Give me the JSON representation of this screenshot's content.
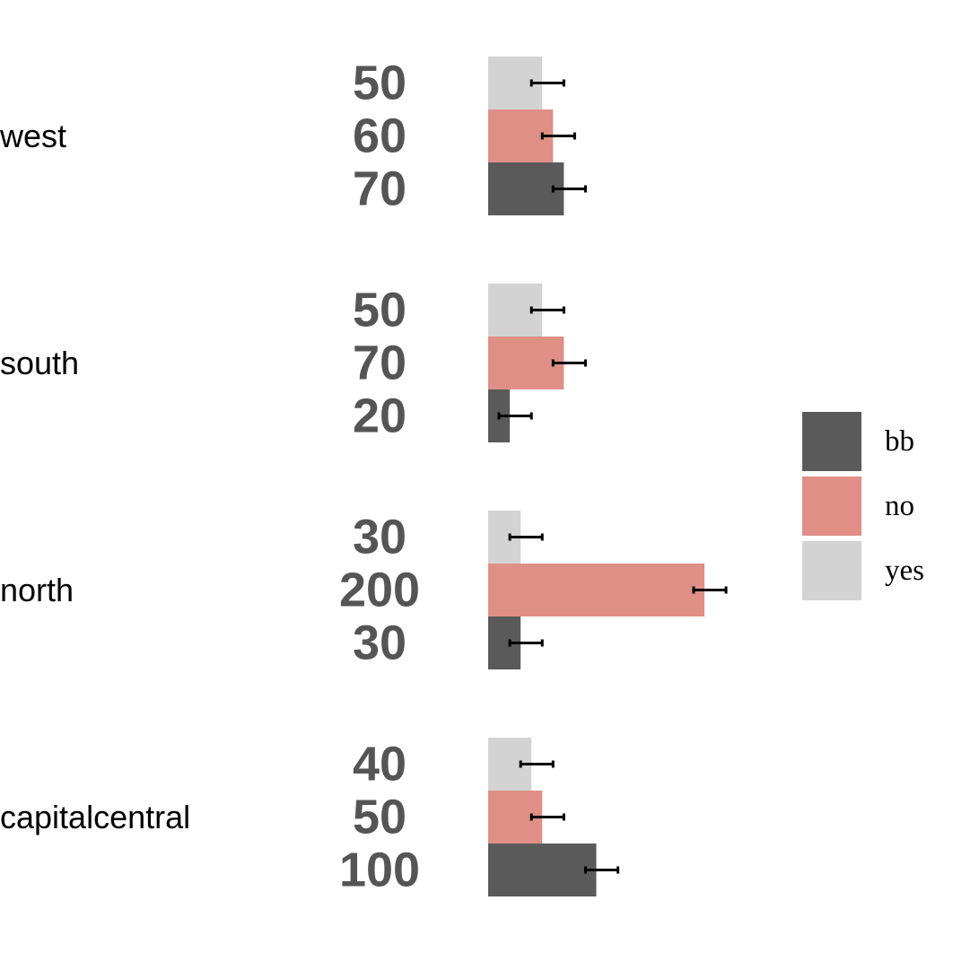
{
  "chart_data": {
    "type": "bar",
    "orientation": "horizontal",
    "categories": [
      "west",
      "south",
      "north",
      "capitalcentral"
    ],
    "series": [
      {
        "name": "yes",
        "color": "#d3d3d4",
        "values": [
          50,
          50,
          30,
          40
        ],
        "error": [
          10,
          10,
          10,
          10
        ]
      },
      {
        "name": "no",
        "color": "#e08f86",
        "values": [
          60,
          70,
          200,
          50
        ],
        "error": [
          10,
          10,
          10,
          10
        ]
      },
      {
        "name": "bb",
        "color": "#5a5a5b",
        "values": [
          70,
          20,
          30,
          100
        ],
        "error": [
          10,
          10,
          10,
          10
        ]
      }
    ],
    "value_labels": [
      [
        "50",
        "60",
        "70"
      ],
      [
        "50",
        "70",
        "20"
      ],
      [
        "30",
        "200",
        "30"
      ],
      [
        "40",
        "50",
        "100"
      ]
    ],
    "xlim": [
      0,
      200
    ],
    "grid": false,
    "axes_visible": false,
    "legend": {
      "position": "right",
      "entries": [
        "bb",
        "no",
        "yes"
      ]
    }
  }
}
